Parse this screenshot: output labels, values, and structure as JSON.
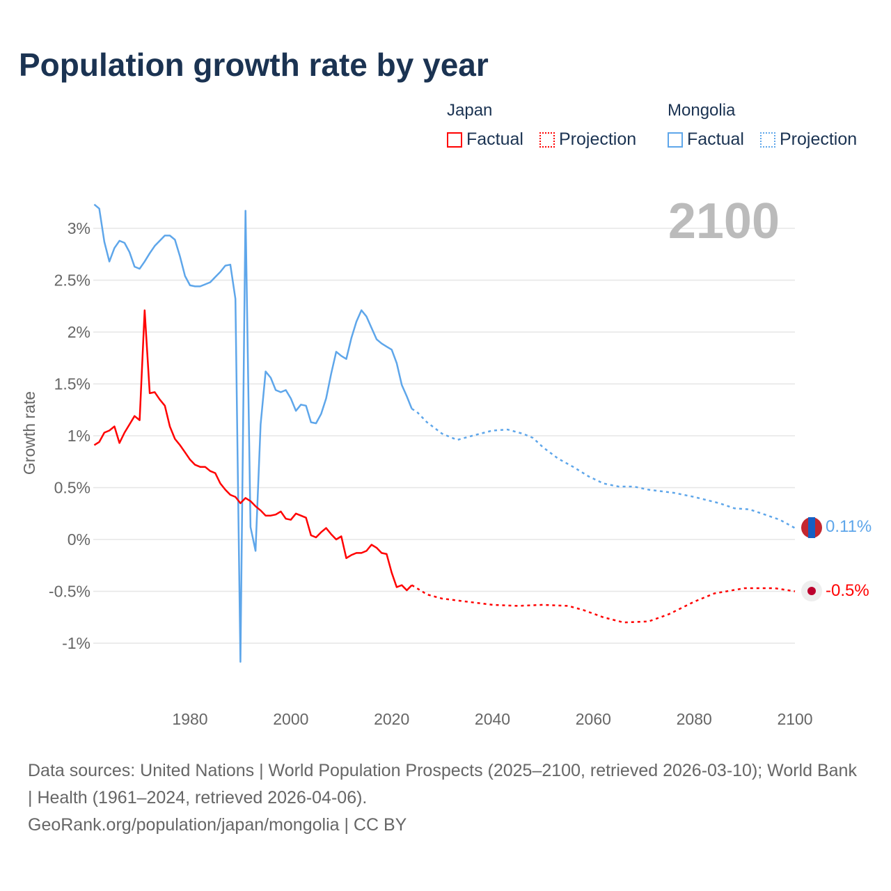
{
  "title": "Population growth rate by year",
  "legend": {
    "groups": [
      {
        "name": "Japan",
        "factual": "Factual",
        "projection": "Projection",
        "color": "#ff0000"
      },
      {
        "name": "Mongolia",
        "factual": "Factual",
        "projection": "Projection",
        "color": "#5ea6ea"
      }
    ]
  },
  "year_label": "2100",
  "end_labels": {
    "mongolia": "0.11%",
    "japan": "-0.5%"
  },
  "footer": {
    "sources": "Data sources: United Nations | World Population Prospects (2025–2100, retrieved 2026-03-10); World Bank | Health (1961–2024, retrieved 2026-04-06).",
    "credit": "GeoRank.org/population/japan/mongolia | CC BY"
  },
  "chart_data": {
    "type": "line",
    "title": "Population growth rate by year",
    "xlabel": "",
    "ylabel": "Growth rate",
    "xlim": [
      1961,
      2100
    ],
    "ylim": [
      -1.4,
      3.3
    ],
    "xticks": [
      1980,
      2000,
      2020,
      2040,
      2060,
      2080,
      2100
    ],
    "yticks": [
      {
        "v": 3,
        "label": "3%"
      },
      {
        "v": 2.5,
        "label": "2.5%"
      },
      {
        "v": 2,
        "label": "2%"
      },
      {
        "v": 1.5,
        "label": "1.5%"
      },
      {
        "v": 1,
        "label": "1%"
      },
      {
        "v": 0.5,
        "label": "0.5%"
      },
      {
        "v": 0,
        "label": "0%"
      },
      {
        "v": -0.5,
        "label": "-0.5%"
      },
      {
        "v": -1,
        "label": "-1%"
      }
    ],
    "grid": true,
    "series": [
      {
        "name": "Mongolia",
        "type": "factual",
        "color": "#5ea6ea",
        "start": 1961,
        "values": [
          3.23,
          3.19,
          2.87,
          2.68,
          2.81,
          2.88,
          2.86,
          2.77,
          2.63,
          2.61,
          2.68,
          2.76,
          2.83,
          2.88,
          2.93,
          2.93,
          2.89,
          2.73,
          2.54,
          2.45,
          2.44,
          2.44,
          2.46,
          2.48,
          2.53,
          2.58,
          2.64,
          2.65,
          2.32,
          -1.18,
          3.17,
          0.12,
          -0.11,
          1.11,
          1.62,
          1.56,
          1.44,
          1.42,
          1.44,
          1.36,
          1.24,
          1.3,
          1.29,
          1.13,
          1.12,
          1.21,
          1.36,
          1.6,
          1.81,
          1.77,
          1.74,
          1.94,
          2.1,
          2.21,
          2.15,
          2.04,
          1.93,
          1.89,
          1.86,
          1.83,
          1.7,
          1.49,
          1.38,
          1.26
        ]
      },
      {
        "name": "Mongolia",
        "type": "projection",
        "color": "#5ea6ea",
        "points": [
          [
            2024,
            1.26
          ],
          [
            2025,
            1.23
          ],
          [
            2027,
            1.13
          ],
          [
            2030,
            1.02
          ],
          [
            2033,
            0.96
          ],
          [
            2036,
            1.0
          ],
          [
            2040,
            1.05
          ],
          [
            2043,
            1.06
          ],
          [
            2046,
            1.02
          ],
          [
            2048,
            0.98
          ],
          [
            2050,
            0.89
          ],
          [
            2053,
            0.78
          ],
          [
            2056,
            0.7
          ],
          [
            2059,
            0.61
          ],
          [
            2062,
            0.54
          ],
          [
            2065,
            0.51
          ],
          [
            2068,
            0.51
          ],
          [
            2071,
            0.48
          ],
          [
            2076,
            0.45
          ],
          [
            2080,
            0.41
          ],
          [
            2085,
            0.35
          ],
          [
            2088,
            0.3
          ],
          [
            2091,
            0.29
          ],
          [
            2094,
            0.24
          ],
          [
            2097,
            0.19
          ],
          [
            2100,
            0.11
          ]
        ]
      },
      {
        "name": "Japan",
        "type": "factual",
        "color": "#ff0000",
        "start": 1961,
        "values": [
          0.91,
          0.94,
          1.03,
          1.05,
          1.09,
          0.93,
          1.03,
          1.11,
          1.19,
          1.15,
          2.21,
          1.41,
          1.42,
          1.35,
          1.29,
          1.09,
          0.97,
          0.91,
          0.84,
          0.77,
          0.72,
          0.7,
          0.7,
          0.66,
          0.64,
          0.54,
          0.48,
          0.43,
          0.41,
          0.35,
          0.4,
          0.37,
          0.32,
          0.28,
          0.23,
          0.23,
          0.24,
          0.27,
          0.2,
          0.19,
          0.25,
          0.23,
          0.21,
          0.04,
          0.02,
          0.07,
          0.11,
          0.05,
          0.0,
          0.03,
          -0.18,
          -0.15,
          -0.13,
          -0.13,
          -0.11,
          -0.05,
          -0.08,
          -0.13,
          -0.14,
          -0.32,
          -0.46,
          -0.44,
          -0.49,
          -0.44
        ]
      },
      {
        "name": "Japan",
        "type": "projection",
        "color": "#ff0000",
        "points": [
          [
            2024,
            -0.44
          ],
          [
            2025,
            -0.47
          ],
          [
            2027,
            -0.53
          ],
          [
            2030,
            -0.57
          ],
          [
            2035,
            -0.6
          ],
          [
            2040,
            -0.63
          ],
          [
            2045,
            -0.64
          ],
          [
            2050,
            -0.63
          ],
          [
            2055,
            -0.64
          ],
          [
            2058,
            -0.68
          ],
          [
            2062,
            -0.75
          ],
          [
            2066,
            -0.8
          ],
          [
            2071,
            -0.79
          ],
          [
            2075,
            -0.72
          ],
          [
            2080,
            -0.6
          ],
          [
            2084,
            -0.52
          ],
          [
            2090,
            -0.47
          ],
          [
            2096,
            -0.47
          ],
          [
            2100,
            -0.5
          ]
        ]
      }
    ]
  }
}
